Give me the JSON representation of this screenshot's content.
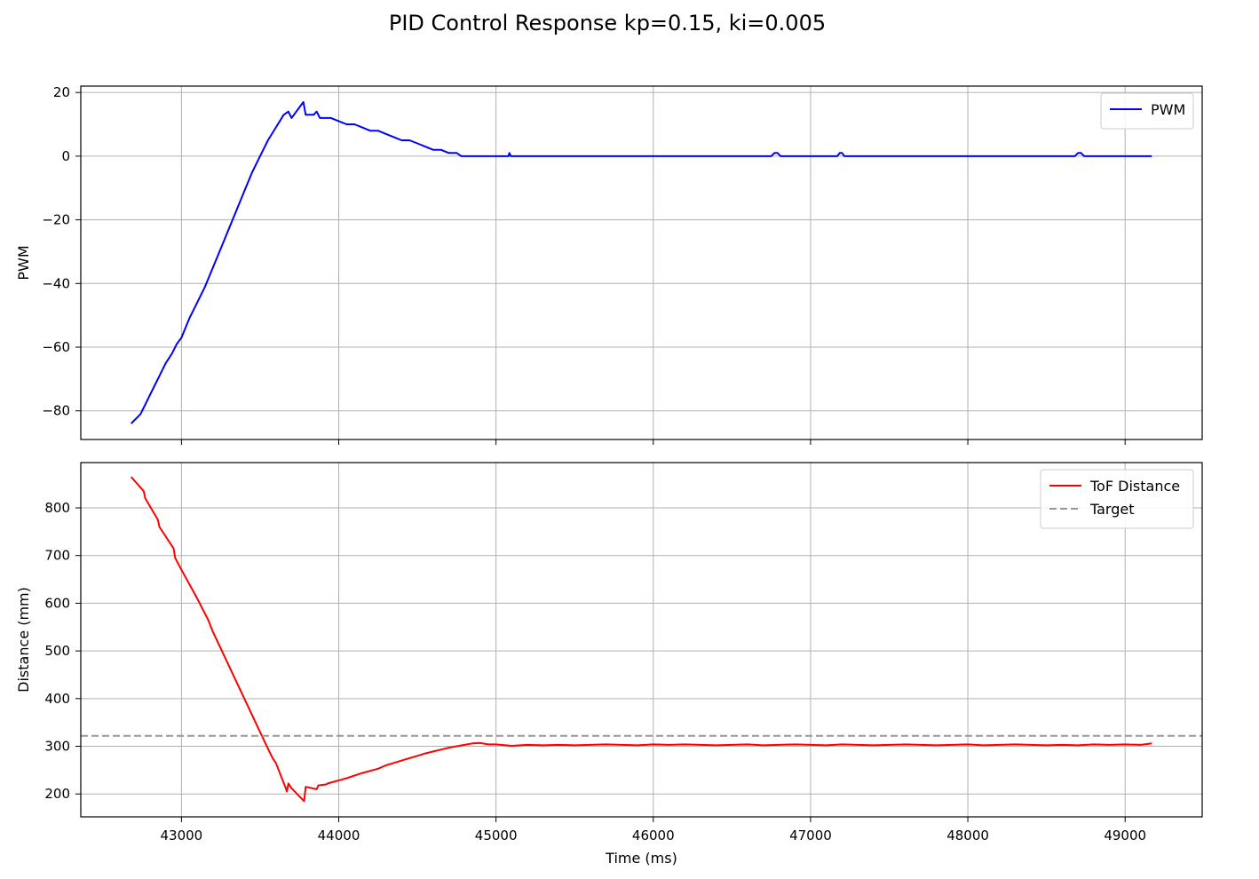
{
  "figure_title": "PID Control Response kp=0.15, ki=0.005",
  "chart_data": [
    {
      "type": "line",
      "ylabel": "PWM",
      "xlabel": "",
      "xlim": [
        42360,
        49490
      ],
      "ylim": [
        -89,
        22
      ],
      "xticks": [
        43000,
        44000,
        45000,
        46000,
        47000,
        48000,
        49000
      ],
      "show_xtick_labels": false,
      "yticks": [
        -80,
        -60,
        -40,
        -20,
        0,
        20
      ],
      "ytick_labels": [
        "−80",
        "−60",
        "−40",
        "−20",
        "0",
        "20"
      ],
      "grid": true,
      "legend_position": "upper right",
      "series": [
        {
          "name": "PWM",
          "color": "#0000ff",
          "style": "solid",
          "x": [
            42680,
            42700,
            42720,
            42740,
            42760,
            42780,
            42800,
            42830,
            42860,
            42900,
            42940,
            42970,
            43000,
            43050,
            43100,
            43150,
            43200,
            43250,
            43300,
            43350,
            43400,
            43450,
            43500,
            43550,
            43600,
            43650,
            43680,
            43700,
            43730,
            43760,
            43775,
            43790,
            43840,
            43860,
            43880,
            43900,
            43950,
            44000,
            44050,
            44100,
            44150,
            44200,
            44250,
            44300,
            44350,
            44400,
            44450,
            44500,
            44550,
            44600,
            44650,
            44700,
            44750,
            44780,
            44800,
            45000,
            45080,
            45085,
            45095,
            45500,
            46000,
            46500,
            46750,
            46770,
            46790,
            46810,
            47000,
            47170,
            47185,
            47200,
            47215,
            47500,
            48000,
            48500,
            48680,
            48700,
            48720,
            48740,
            49000,
            49170
          ],
          "y": [
            -84,
            -83,
            -82,
            -81,
            -79,
            -77,
            -75,
            -72,
            -69,
            -65,
            -62,
            -59,
            -57,
            -51,
            -46,
            -41,
            -35,
            -29,
            -23,
            -17,
            -11,
            -5,
            0,
            5,
            9,
            13,
            14,
            12,
            14,
            16,
            17,
            13,
            13,
            14,
            12,
            12,
            12,
            11,
            10,
            10,
            9,
            8,
            8,
            7,
            6,
            5,
            5,
            4,
            3,
            2,
            2,
            1,
            1,
            0,
            0,
            0,
            0,
            1,
            0,
            0,
            0,
            0,
            0,
            1,
            1,
            0,
            0,
            0,
            1,
            1,
            0,
            0,
            0,
            0,
            0,
            1,
            1,
            0,
            0,
            0
          ]
        }
      ]
    },
    {
      "type": "line",
      "ylabel": "Distance (mm)",
      "xlabel": "Time (ms)",
      "xlim": [
        42360,
        49490
      ],
      "ylim": [
        152,
        895
      ],
      "xticks": [
        43000,
        44000,
        45000,
        46000,
        47000,
        48000,
        49000
      ],
      "xtick_labels": [
        "43000",
        "44000",
        "45000",
        "46000",
        "47000",
        "48000",
        "49000"
      ],
      "yticks": [
        200,
        300,
        400,
        500,
        600,
        700,
        800
      ],
      "ytick_labels": [
        "200",
        "300",
        "400",
        "500",
        "600",
        "700",
        "800"
      ],
      "grid": true,
      "legend_position": "upper right",
      "series": [
        {
          "name": "ToF Distance",
          "color": "#ff0000",
          "style": "solid",
          "x": [
            42680,
            42760,
            42770,
            42850,
            42860,
            42950,
            42960,
            43000,
            43100,
            43170,
            43200,
            43300,
            43400,
            43500,
            43550,
            43580,
            43600,
            43660,
            43670,
            43680,
            43700,
            43780,
            43790,
            43860,
            43870,
            43920,
            43930,
            44050,
            44150,
            44250,
            44300,
            44350,
            44400,
            44450,
            44500,
            44550,
            44600,
            44650,
            44700,
            44750,
            44800,
            44850,
            44900,
            44950,
            45000,
            45100,
            45200,
            45300,
            45400,
            45500,
            45600,
            45700,
            45800,
            45900,
            46000,
            46100,
            46200,
            46300,
            46400,
            46500,
            46600,
            46700,
            46800,
            46900,
            47000,
            47100,
            47200,
            47300,
            47400,
            47500,
            47600,
            47700,
            47800,
            47900,
            48000,
            48100,
            48200,
            48300,
            48400,
            48500,
            48600,
            48700,
            48800,
            48900,
            49000,
            49100,
            49170
          ],
          "y": [
            865,
            835,
            820,
            775,
            760,
            715,
            695,
            670,
            610,
            565,
            540,
            470,
            400,
            330,
            295,
            275,
            265,
            215,
            205,
            222,
            212,
            185,
            215,
            210,
            218,
            220,
            222,
            233,
            244,
            253,
            260,
            265,
            270,
            275,
            280,
            285,
            289,
            293,
            297,
            300,
            303,
            306,
            307,
            304,
            304,
            301,
            303,
            302,
            303,
            302,
            303,
            304,
            303,
            302,
            304,
            303,
            304,
            303,
            302,
            303,
            304,
            302,
            303,
            304,
            303,
            302,
            304,
            303,
            302,
            303,
            304,
            303,
            302,
            303,
            304,
            302,
            303,
            304,
            303,
            302,
            303,
            302,
            304,
            303,
            304,
            303,
            306
          ]
        },
        {
          "name": "Target",
          "color": "#999999",
          "style": "dashed",
          "x": [
            42360,
            49490
          ],
          "y": [
            322,
            322
          ]
        }
      ]
    }
  ]
}
